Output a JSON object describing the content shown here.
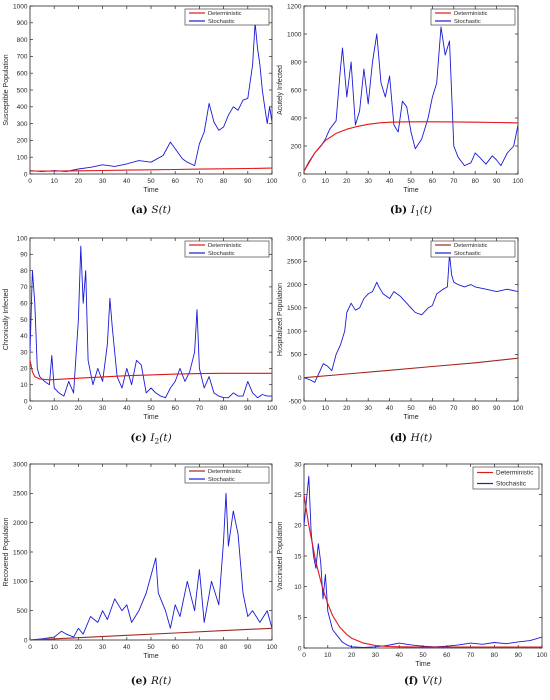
{
  "legend_labels": {
    "deterministic": "Deterministic",
    "stochastic": "Stochastic"
  },
  "colors": {
    "deterministic": "#e0161b",
    "stochastic": "#1a1ad8"
  },
  "chart_data": [
    {
      "type": "line",
      "caption": {
        "tag": "(a)",
        "math": "S(t)"
      },
      "xlabel": "Time",
      "ylabel": "Susceptible Population",
      "xlim": [
        0,
        100
      ],
      "ylim": [
        0,
        1000
      ],
      "xticks": [
        0,
        10,
        20,
        30,
        40,
        50,
        60,
        70,
        80,
        90,
        100
      ],
      "yticks": [
        0,
        100,
        200,
        300,
        400,
        500,
        600,
        700,
        800,
        900,
        1000
      ],
      "legend": "top-right",
      "series": [
        {
          "name": "Deterministic",
          "x": [
            0,
            10,
            20,
            30,
            40,
            50,
            60,
            70,
            80,
            90,
            100
          ],
          "y": [
            18,
            17,
            19,
            21,
            23,
            25,
            27,
            29,
            31,
            33,
            35
          ]
        },
        {
          "name": "Stochastic",
          "x": [
            0,
            5,
            10,
            15,
            20,
            25,
            30,
            35,
            40,
            45,
            50,
            55,
            58,
            60,
            63,
            65,
            68,
            70,
            72,
            74,
            76,
            78,
            80,
            82,
            84,
            86,
            88,
            90,
            92,
            93,
            94,
            95,
            96,
            97,
            98,
            99,
            100
          ],
          "y": [
            20,
            15,
            20,
            15,
            30,
            40,
            55,
            45,
            60,
            80,
            70,
            110,
            190,
            150,
            90,
            70,
            50,
            180,
            250,
            420,
            310,
            260,
            280,
            350,
            400,
            380,
            440,
            450,
            650,
            900,
            750,
            650,
            500,
            400,
            300,
            400,
            310
          ]
        }
      ]
    },
    {
      "type": "line",
      "caption": {
        "tag": "(b)",
        "math": "I1(t)"
      },
      "xlabel": "Time",
      "ylabel": "Acutely Infected",
      "xlim": [
        0,
        100
      ],
      "ylim": [
        0,
        1200
      ],
      "xticks": [
        0,
        10,
        20,
        30,
        40,
        50,
        60,
        70,
        80,
        90,
        100
      ],
      "yticks": [
        0,
        200,
        400,
        600,
        800,
        1000,
        1200
      ],
      "legend": "top-right",
      "series": [
        {
          "name": "Deterministic",
          "x": [
            0,
            5,
            10,
            15,
            20,
            25,
            30,
            35,
            40,
            45,
            50,
            60,
            70,
            80,
            90,
            100
          ],
          "y": [
            20,
            150,
            240,
            290,
            320,
            340,
            355,
            365,
            370,
            372,
            373,
            373,
            372,
            370,
            368,
            365
          ]
        },
        {
          "name": "Stochastic",
          "x": [
            0,
            2,
            5,
            8,
            10,
            12,
            15,
            17,
            18,
            20,
            22,
            24,
            26,
            28,
            30,
            32,
            34,
            36,
            38,
            40,
            42,
            44,
            46,
            48,
            50,
            52,
            55,
            58,
            60,
            62,
            64,
            66,
            68,
            70,
            72,
            75,
            78,
            80,
            82,
            85,
            88,
            90,
            92,
            95,
            98,
            100
          ],
          "y": [
            20,
            80,
            150,
            200,
            250,
            320,
            380,
            750,
            900,
            550,
            800,
            350,
            450,
            750,
            500,
            800,
            1000,
            650,
            550,
            700,
            350,
            300,
            520,
            480,
            300,
            180,
            250,
            400,
            550,
            650,
            1050,
            850,
            950,
            200,
            120,
            60,
            80,
            150,
            120,
            70,
            130,
            100,
            60,
            150,
            200,
            350
          ]
        }
      ]
    },
    {
      "type": "line",
      "caption": {
        "tag": "(c)",
        "math": "I2(t)"
      },
      "xlabel": "Time",
      "ylabel": "Chronically Infected",
      "xlim": [
        0,
        100
      ],
      "ylim": [
        0,
        100
      ],
      "xticks": [
        0,
        10,
        20,
        30,
        40,
        50,
        60,
        70,
        80,
        90,
        100
      ],
      "yticks": [
        0,
        10,
        20,
        30,
        40,
        50,
        60,
        70,
        80,
        90,
        100
      ],
      "legend": "top-right",
      "series": [
        {
          "name": "Deterministic",
          "x": [
            0,
            1,
            2,
            4,
            8,
            12,
            20,
            30,
            40,
            50,
            60,
            70,
            80,
            90,
            100
          ],
          "y": [
            25,
            18,
            15,
            13.5,
            13,
            13.3,
            14,
            14.8,
            15.5,
            16,
            16.5,
            16.8,
            17,
            17,
            17
          ]
        },
        {
          "name": "Stochastic",
          "x": [
            0,
            1,
            2,
            3,
            4,
            6,
            8,
            9,
            10,
            12,
            14,
            16,
            18,
            20,
            21,
            22,
            23,
            24,
            26,
            28,
            30,
            32,
            33,
            34,
            36,
            38,
            40,
            42,
            44,
            46,
            48,
            50,
            52,
            54,
            56,
            58,
            60,
            62,
            64,
            66,
            68,
            69,
            70,
            72,
            74,
            76,
            78,
            80,
            82,
            84,
            86,
            88,
            90,
            92,
            94,
            96,
            98,
            100
          ],
          "y": [
            30,
            80,
            60,
            20,
            15,
            12,
            10,
            28,
            8,
            5,
            3,
            12,
            5,
            50,
            95,
            60,
            80,
            25,
            10,
            20,
            12,
            35,
            63,
            45,
            15,
            8,
            20,
            10,
            25,
            22,
            5,
            8,
            5,
            3,
            2,
            8,
            12,
            20,
            12,
            18,
            30,
            56,
            20,
            8,
            15,
            5,
            3,
            2,
            2,
            5,
            3,
            3,
            12,
            5,
            2,
            4,
            3,
            3
          ]
        }
      ]
    },
    {
      "type": "line",
      "caption": {
        "tag": "(d)",
        "math": "H(t)"
      },
      "xlabel": "Time",
      "ylabel": "Hospitalized Population",
      "xlim": [
        0,
        100
      ],
      "ylim": [
        -500,
        3000
      ],
      "xticks": [
        0,
        10,
        20,
        30,
        40,
        50,
        60,
        70,
        80,
        90,
        100
      ],
      "yticks": [
        -500,
        0,
        500,
        1000,
        1500,
        2000,
        2500,
        3000
      ],
      "legend": "top-right",
      "series": [
        {
          "name": "Deterministic",
          "x": [
            0,
            20,
            40,
            60,
            80,
            100
          ],
          "y": [
            0,
            80,
            160,
            240,
            320,
            420
          ]
        },
        {
          "name": "Stochastic",
          "x": [
            0,
            3,
            5,
            7,
            9,
            11,
            13,
            15,
            17,
            19,
            20,
            22,
            24,
            26,
            28,
            30,
            32,
            34,
            35,
            37,
            40,
            42,
            45,
            48,
            50,
            52,
            55,
            58,
            60,
            62,
            65,
            67,
            68,
            69,
            70,
            72,
            75,
            78,
            80,
            85,
            90,
            95,
            100
          ],
          "y": [
            0,
            -50,
            -100,
            100,
            300,
            250,
            150,
            500,
            700,
            1000,
            1400,
            1600,
            1450,
            1500,
            1700,
            1800,
            1850,
            2050,
            1950,
            1800,
            1700,
            1850,
            1750,
            1600,
            1500,
            1400,
            1350,
            1500,
            1550,
            1800,
            1900,
            1950,
            2650,
            2200,
            2050,
            2000,
            1950,
            2000,
            1950,
            1900,
            1850,
            1900,
            1850
          ]
        }
      ]
    },
    {
      "type": "line",
      "caption": {
        "tag": "(e)",
        "math": "R(t)"
      },
      "xlabel": "Time",
      "ylabel": "Recovered Population",
      "xlim": [
        0,
        100
      ],
      "ylim": [
        0,
        3000
      ],
      "xticks": [
        0,
        10,
        20,
        30,
        40,
        50,
        60,
        70,
        80,
        90,
        100
      ],
      "yticks": [
        0,
        500,
        1000,
        1500,
        2000,
        2500,
        3000
      ],
      "legend": "top-right",
      "series": [
        {
          "name": "Deterministic",
          "x": [
            0,
            20,
            40,
            60,
            80,
            100
          ],
          "y": [
            0,
            40,
            80,
            120,
            160,
            200
          ]
        },
        {
          "name": "Stochastic",
          "x": [
            0,
            5,
            10,
            13,
            15,
            18,
            20,
            22,
            25,
            28,
            30,
            32,
            35,
            38,
            40,
            42,
            45,
            48,
            50,
            52,
            53,
            54,
            56,
            58,
            60,
            62,
            65,
            68,
            70,
            72,
            75,
            78,
            80,
            81,
            82,
            84,
            85,
            86,
            88,
            90,
            92,
            95,
            98,
            100
          ],
          "y": [
            0,
            20,
            50,
            150,
            100,
            50,
            200,
            100,
            400,
            300,
            500,
            350,
            700,
            500,
            600,
            300,
            500,
            800,
            1100,
            1400,
            800,
            700,
            500,
            200,
            600,
            400,
            1000,
            500,
            1200,
            300,
            1000,
            600,
            1700,
            2500,
            1600,
            2200,
            2000,
            1800,
            800,
            400,
            500,
            300,
            500,
            200
          ]
        }
      ]
    },
    {
      "type": "line",
      "caption": {
        "tag": "(f)",
        "math": "V(t)"
      },
      "xlabel": "Time",
      "ylabel": "Vaccinated Population",
      "xlim": [
        0,
        100
      ],
      "ylim": [
        0,
        30
      ],
      "xticks": [
        0,
        10,
        20,
        30,
        40,
        50,
        60,
        70,
        80,
        90,
        100
      ],
      "yticks": [
        0,
        5,
        10,
        15,
        20,
        25,
        30
      ],
      "legend": "top-right",
      "series": [
        {
          "name": "Deterministic",
          "x": [
            0,
            2,
            5,
            8,
            10,
            12,
            15,
            18,
            20,
            25,
            30,
            35,
            40,
            50,
            60,
            70,
            80,
            90,
            100
          ],
          "y": [
            25,
            20,
            14,
            9.5,
            7.2,
            5.3,
            3.4,
            2.2,
            1.6,
            0.8,
            0.4,
            0.25,
            0.2,
            0.15,
            0.15,
            0.15,
            0.15,
            0.15,
            0.15
          ]
        },
        {
          "name": "Stochastic",
          "x": [
            0,
            1,
            2,
            3,
            4,
            5,
            6,
            7,
            8,
            9,
            10,
            12,
            14,
            16,
            18,
            20,
            25,
            30,
            35,
            40,
            45,
            50,
            55,
            60,
            65,
            70,
            75,
            80,
            85,
            90,
            95,
            100
          ],
          "y": [
            20,
            24,
            28,
            19,
            15,
            13,
            17,
            14,
            8,
            12,
            6,
            3,
            2,
            1,
            0.5,
            0.2,
            0.1,
            0.2,
            0.4,
            0.8,
            0.5,
            0.3,
            0.2,
            0.3,
            0.5,
            0.8,
            0.6,
            0.9,
            0.7,
            1.0,
            1.2,
            1.8
          ]
        }
      ]
    }
  ]
}
